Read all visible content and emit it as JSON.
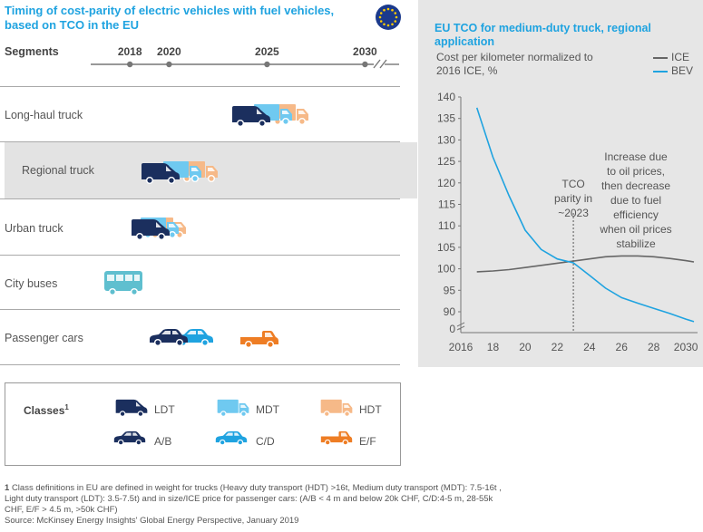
{
  "left": {
    "title": "Timing of cost-parity of electric vehicles with fuel vehicles, based on TCO in the EU",
    "segments_label": "Segments",
    "years": [
      {
        "label": "2018",
        "value": 2018
      },
      {
        "label": "2020",
        "value": 2020
      },
      {
        "label": "2025",
        "value": 2025
      },
      {
        "label": "2030",
        "value": 2030
      }
    ],
    "rows": [
      {
        "label": "Long-haul truck",
        "icons": [
          "LDT",
          "MDT",
          "HDT"
        ],
        "year": 2025
      },
      {
        "label": "Regional truck",
        "icons": [
          "LDT",
          "MDT",
          "HDT"
        ],
        "year": 2020
      },
      {
        "label": "Urban truck",
        "icons": [
          "LDT",
          "MDT",
          "HDT"
        ],
        "year": 2019
      },
      {
        "label": "City buses",
        "icons": [
          "bus"
        ],
        "year": 2017
      },
      {
        "label": "Passenger cars",
        "icons": [
          "A/B",
          "C/D"
        ],
        "extra_icon": "E/F"
      }
    ],
    "classes_label": "Classes",
    "classes_sup": "1",
    "classes": [
      {
        "label": "LDT",
        "icon": "truck-icon",
        "color": "#1b2f5e"
      },
      {
        "label": "MDT",
        "icon": "truck-icon",
        "color": "#6fc9f0"
      },
      {
        "label": "HDT",
        "icon": "truck-icon",
        "color": "#f6b988"
      },
      {
        "label": "A/B",
        "icon": "car-icon",
        "color": "#1b2f5e"
      },
      {
        "label": "C/D",
        "icon": "car-icon",
        "color": "#1fa3e0"
      },
      {
        "label": "E/F",
        "icon": "pickup-icon",
        "color": "#ee7d24"
      }
    ],
    "footnote_num": "1",
    "footnote": "Class definitions in EU are defined in weight for trucks (Heavy duty transport (HDT) >16t, Medium duty transport (MDT): 7.5-16t , Light duty transport (LDT): 3.5-7.5t) and in size/ICE price for passenger cars: (A/B < 4 m and below 20k CHF, C/D:4-5 m, 28-55k CHF, E/F > 4.5 m, >50k CHF)",
    "source": "Source: McKinsey Energy Insights' Global Energy Perspective, January 2019"
  },
  "chart_data": {
    "type": "line",
    "title": "EU TCO for medium-duty truck, regional application",
    "subtitle": "Cost per kilometer normalized to 2016 ICE, %",
    "x_ticks": [
      "2016",
      "18",
      "20",
      "22",
      "24",
      "26",
      "28",
      "2030"
    ],
    "xlim": [
      2016,
      2030.5
    ],
    "y_ticks": [
      "0",
      "90",
      "95",
      "100",
      "105",
      "110",
      "115",
      "120",
      "125",
      "130",
      "135",
      "140"
    ],
    "ylim": [
      85,
      140
    ],
    "y_axis_break": true,
    "series": [
      {
        "name": "ICE",
        "color": "#666666",
        "x": [
          2017,
          2018,
          2019,
          2020,
          2021,
          2022,
          2023,
          2024,
          2025,
          2026,
          2027,
          2028,
          2029,
          2030,
          2030.5
        ],
        "y": [
          99.3,
          99.5,
          99.8,
          100.3,
          100.8,
          101.3,
          101.8,
          102.3,
          102.8,
          103.0,
          103.0,
          102.8,
          102.4,
          101.9,
          101.6
        ]
      },
      {
        "name": "BEV",
        "color": "#1fa3e0",
        "x": [
          2017,
          2018,
          2019,
          2020,
          2021,
          2022,
          2023,
          2024,
          2025,
          2026,
          2027,
          2028,
          2029,
          2030,
          2030.5
        ],
        "y": [
          137.5,
          126,
          117,
          109,
          104.5,
          102.3,
          101.4,
          98.5,
          95.5,
          93.3,
          92,
          90.8,
          89.6,
          88.3,
          87.7
        ]
      }
    ],
    "annotations": [
      {
        "text": [
          "TCO",
          "parity in",
          "~2023"
        ]
      },
      {
        "text": [
          "Increase due",
          "to oil prices,",
          "then decrease",
          "due to fuel",
          "efficiency",
          "when oil prices",
          "stabilize"
        ]
      }
    ],
    "parity_year": 2023
  }
}
